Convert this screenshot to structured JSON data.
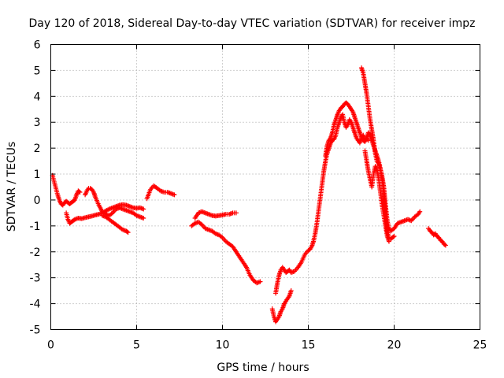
{
  "chart_data": {
    "type": "scatter",
    "title": "Day 120 of 2018, Sidereal Day-to-day VTEC variation (SDTVAR) for receiver impz",
    "xlabel": "GPS time / hours",
    "ylabel": "SDTVAR / TECUs",
    "xlim": [
      0,
      25
    ],
    "ylim": [
      -5,
      6
    ],
    "xticks": [
      0,
      5,
      10,
      15,
      20,
      25
    ],
    "yticks": [
      -5,
      -4,
      -3,
      -2,
      -1,
      0,
      1,
      2,
      3,
      4,
      5,
      6
    ],
    "grid": true,
    "marker": "+",
    "color": "#ff0000",
    "series": [
      {
        "name": "s1",
        "x": [
          0.1,
          0.2,
          0.3,
          0.4,
          0.5,
          0.6,
          0.7,
          0.8,
          0.9,
          1.0,
          1.1,
          1.2,
          1.3,
          1.4,
          1.5,
          1.6,
          1.7
        ],
        "y": [
          0.95,
          0.7,
          0.45,
          0.2,
          0.0,
          -0.15,
          -0.2,
          -0.1,
          -0.05,
          -0.1,
          -0.15,
          -0.1,
          -0.05,
          0.0,
          0.2,
          0.35,
          0.3
        ]
      },
      {
        "name": "s2",
        "x": [
          0.9,
          1.0,
          1.1,
          1.2,
          1.3,
          1.4,
          1.6,
          1.8,
          2.0,
          2.2,
          2.4,
          2.6,
          2.8,
          3.0,
          3.2,
          3.4,
          3.6,
          3.8,
          4.0,
          4.2,
          4.4,
          4.6,
          4.8,
          5.0,
          5.2,
          5.4
        ],
        "y": [
          -0.5,
          -0.75,
          -0.9,
          -0.85,
          -0.8,
          -0.75,
          -0.7,
          -0.72,
          -0.68,
          -0.65,
          -0.62,
          -0.58,
          -0.55,
          -0.5,
          -0.42,
          -0.35,
          -0.3,
          -0.25,
          -0.2,
          -0.18,
          -0.2,
          -0.25,
          -0.3,
          -0.32,
          -0.3,
          -0.35
        ]
      },
      {
        "name": "s3",
        "x": [
          2.0,
          2.1,
          2.2,
          2.3,
          2.4,
          2.5,
          2.6,
          2.8,
          3.0,
          3.2,
          3.4,
          3.6,
          3.8,
          4.0,
          4.2,
          4.4,
          4.6,
          4.8,
          5.0,
          5.2,
          5.4
        ],
        "y": [
          0.2,
          0.35,
          0.45,
          0.45,
          0.4,
          0.3,
          0.1,
          -0.2,
          -0.45,
          -0.55,
          -0.6,
          -0.5,
          -0.35,
          -0.3,
          -0.35,
          -0.4,
          -0.45,
          -0.5,
          -0.6,
          -0.65,
          -0.7
        ]
      },
      {
        "name": "s4",
        "x": [
          3.0,
          3.2,
          3.4,
          3.6,
          3.8,
          4.0,
          4.2,
          4.4,
          4.5
        ],
        "y": [
          -0.6,
          -0.65,
          -0.75,
          -0.85,
          -0.95,
          -1.05,
          -1.15,
          -1.2,
          -1.25
        ]
      },
      {
        "name": "s5",
        "x": [
          5.6,
          5.8,
          6.0,
          6.2,
          6.4,
          6.6,
          6.8,
          7.0,
          7.2
        ],
        "y": [
          0.05,
          0.4,
          0.55,
          0.45,
          0.35,
          0.3,
          0.3,
          0.25,
          0.2
        ]
      },
      {
        "name": "s6",
        "x": [
          8.4,
          8.6,
          8.8,
          9.0,
          9.2,
          9.4,
          9.6,
          9.8,
          10.0,
          10.2,
          10.4,
          10.6,
          10.8
        ],
        "y": [
          -0.7,
          -0.5,
          -0.45,
          -0.5,
          -0.55,
          -0.6,
          -0.62,
          -0.6,
          -0.58,
          -0.55,
          -0.55,
          -0.5,
          -0.5
        ]
      },
      {
        "name": "s7",
        "x": [
          8.2,
          8.4,
          8.6,
          8.8,
          9.0,
          9.2,
          9.4,
          9.6,
          9.8,
          10.0,
          10.2,
          10.4,
          10.6,
          10.8,
          11.0,
          11.2,
          11.4,
          11.6,
          11.8,
          12.0,
          12.2
        ],
        "y": [
          -1.0,
          -0.9,
          -0.85,
          -0.95,
          -1.1,
          -1.15,
          -1.2,
          -1.3,
          -1.35,
          -1.45,
          -1.6,
          -1.7,
          -1.8,
          -2.0,
          -2.2,
          -2.4,
          -2.6,
          -2.9,
          -3.1,
          -3.2,
          -3.15
        ]
      },
      {
        "name": "s8",
        "x": [
          12.9,
          13.0,
          13.1,
          13.2,
          13.3,
          13.4,
          13.5,
          13.6,
          13.7,
          13.8,
          13.9,
          14.0
        ],
        "y": [
          -4.2,
          -4.5,
          -4.7,
          -4.6,
          -4.5,
          -4.3,
          -4.2,
          -4.0,
          -3.9,
          -3.8,
          -3.7,
          -3.5
        ]
      },
      {
        "name": "s9",
        "x": [
          13.1,
          13.2,
          13.3,
          13.4,
          13.5,
          13.6,
          13.7,
          13.8,
          13.9,
          14.0,
          14.2,
          14.4,
          14.6,
          14.8,
          15.0,
          15.1,
          15.2,
          15.3,
          15.4,
          15.5,
          15.6,
          15.7,
          15.8,
          15.9,
          16.0,
          16.1,
          16.2,
          16.3,
          16.4,
          16.5,
          16.6,
          16.7,
          16.8,
          16.9,
          17.0,
          17.1,
          17.2,
          17.3,
          17.4,
          17.5,
          17.6,
          17.7,
          17.8,
          17.9,
          18.0,
          18.1,
          18.2,
          18.3,
          18.4,
          18.5
        ],
        "y": [
          -3.6,
          -3.2,
          -2.9,
          -2.7,
          -2.6,
          -2.7,
          -2.8,
          -2.75,
          -2.7,
          -2.8,
          -2.75,
          -2.6,
          -2.4,
          -2.1,
          -1.95,
          -1.9,
          -1.8,
          -1.6,
          -1.3,
          -0.9,
          -0.4,
          0.1,
          0.6,
          1.1,
          1.5,
          1.8,
          2.0,
          2.2,
          2.3,
          2.35,
          2.5,
          2.8,
          3.0,
          3.2,
          3.3,
          3.0,
          2.8,
          2.9,
          3.1,
          3.0,
          2.8,
          2.6,
          2.4,
          2.3,
          2.2,
          2.4,
          2.5,
          2.3,
          2.4,
          2.3
        ]
      },
      {
        "name": "s10",
        "x": [
          16.0,
          16.1,
          16.2,
          16.3,
          16.4,
          16.5,
          16.6,
          16.7,
          16.8,
          16.9,
          17.0,
          17.1,
          17.2,
          17.3,
          17.4,
          17.5,
          17.6,
          17.7,
          17.8,
          17.9,
          18.0,
          18.1,
          18.2,
          18.3,
          18.4,
          18.5,
          18.6,
          18.7,
          18.8,
          18.9,
          19.0,
          19.1,
          19.2,
          19.3,
          19.4,
          19.5,
          19.6,
          19.7,
          19.8,
          19.9,
          20.0
        ],
        "y": [
          1.7,
          2.1,
          2.3,
          2.4,
          2.6,
          2.9,
          3.1,
          3.3,
          3.45,
          3.55,
          3.6,
          3.7,
          3.75,
          3.7,
          3.6,
          3.5,
          3.4,
          3.2,
          3.0,
          2.8,
          2.6,
          2.4,
          2.3,
          2.25,
          2.4,
          2.6,
          2.5,
          2.3,
          2.1,
          1.9,
          1.7,
          1.5,
          1.2,
          0.8,
          0.2,
          -0.6,
          -1.2,
          -1.5,
          -1.5,
          -1.45,
          -1.4
        ]
      },
      {
        "name": "s11",
        "x": [
          18.1,
          18.2,
          18.3,
          18.4,
          18.5,
          18.6,
          18.7,
          18.8,
          18.9,
          19.0,
          19.1,
          19.2,
          19.3,
          19.4,
          19.5,
          19.6,
          19.7,
          19.8,
          20.0,
          20.2,
          20.4,
          20.6,
          20.8,
          21.0,
          21.2,
          21.4,
          21.5
        ],
        "y": [
          5.1,
          4.9,
          4.5,
          4.1,
          3.6,
          3.1,
          2.7,
          2.3,
          1.8,
          1.5,
          1.4,
          1.2,
          0.9,
          0.5,
          -0.2,
          -0.8,
          -1.1,
          -1.2,
          -1.1,
          -0.9,
          -0.85,
          -0.8,
          -0.75,
          -0.8,
          -0.65,
          -0.55,
          -0.45
        ]
      },
      {
        "name": "s12",
        "x": [
          18.3,
          18.4,
          18.5,
          18.6,
          18.7,
          18.8,
          18.9,
          19.0,
          19.1,
          19.2,
          19.3,
          19.4,
          19.5,
          19.6,
          19.7
        ],
        "y": [
          1.9,
          1.5,
          1.1,
          0.8,
          0.5,
          1.0,
          1.3,
          1.2,
          0.8,
          0.3,
          -0.2,
          -0.6,
          -1.0,
          -1.4,
          -1.6
        ]
      },
      {
        "name": "s13",
        "x": [
          22.0,
          22.1,
          22.2,
          22.3,
          22.4,
          22.5,
          22.6,
          22.7,
          22.8,
          22.9,
          23.0
        ],
        "y": [
          -1.1,
          -1.2,
          -1.25,
          -1.35,
          -1.3,
          -1.4,
          -1.45,
          -1.55,
          -1.6,
          -1.7,
          -1.75
        ]
      }
    ]
  }
}
